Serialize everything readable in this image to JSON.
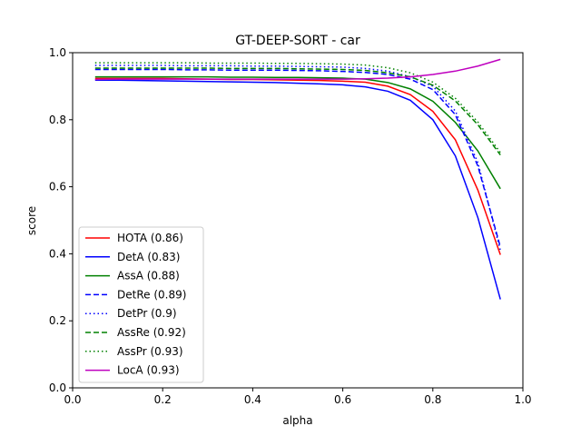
{
  "chart_data": {
    "type": "line",
    "title": "GT-DEEP-SORT - car",
    "xlabel": "alpha",
    "ylabel": "score",
    "xlim": [
      0.0,
      1.0
    ],
    "ylim": [
      0.0,
      1.0
    ],
    "xticks": [
      "0.0",
      "0.2",
      "0.4",
      "0.6",
      "0.8",
      "1.0"
    ],
    "yticks": [
      "0.0",
      "0.2",
      "0.4",
      "0.6",
      "0.8",
      "1.0"
    ],
    "grid": false,
    "legend_position": "lower-left",
    "x": [
      0.05,
      0.1,
      0.15,
      0.2,
      0.25,
      0.3,
      0.35,
      0.4,
      0.45,
      0.5,
      0.55,
      0.6,
      0.65,
      0.7,
      0.75,
      0.8,
      0.85,
      0.9,
      0.95
    ],
    "series": [
      {
        "name": "HOTA (0.86)",
        "color": "#ff0000",
        "dash": "solid",
        "values": [
          0.923,
          0.923,
          0.923,
          0.923,
          0.922,
          0.921,
          0.92,
          0.92,
          0.919,
          0.918,
          0.917,
          0.915,
          0.912,
          0.9,
          0.875,
          0.825,
          0.74,
          0.59,
          0.397
        ]
      },
      {
        "name": "DetA (0.83)",
        "color": "#0000ff",
        "dash": "solid",
        "values": [
          0.918,
          0.918,
          0.917,
          0.916,
          0.915,
          0.914,
          0.913,
          0.912,
          0.911,
          0.909,
          0.907,
          0.904,
          0.898,
          0.885,
          0.858,
          0.8,
          0.692,
          0.508,
          0.264
        ]
      },
      {
        "name": "AssA (0.88)",
        "color": "#008000",
        "dash": "solid",
        "values": [
          0.928,
          0.928,
          0.928,
          0.928,
          0.928,
          0.928,
          0.927,
          0.927,
          0.926,
          0.926,
          0.925,
          0.924,
          0.921,
          0.911,
          0.892,
          0.855,
          0.792,
          0.707,
          0.594
        ]
      },
      {
        "name": "DetRe (0.89)",
        "color": "#0000ff",
        "dash": "dashed",
        "values": [
          0.95,
          0.95,
          0.95,
          0.95,
          0.949,
          0.949,
          0.948,
          0.948,
          0.948,
          0.947,
          0.946,
          0.944,
          0.941,
          0.935,
          0.921,
          0.89,
          0.815,
          0.662,
          0.42
        ]
      },
      {
        "name": "DetPr (0.9)",
        "color": "#0000ff",
        "dash": "dotted",
        "values": [
          0.962,
          0.962,
          0.962,
          0.962,
          0.961,
          0.961,
          0.961,
          0.96,
          0.96,
          0.959,
          0.958,
          0.957,
          0.953,
          0.945,
          0.928,
          0.9,
          0.826,
          0.672,
          0.41
        ]
      },
      {
        "name": "AssRe (0.92)",
        "color": "#008000",
        "dash": "dashed",
        "values": [
          0.954,
          0.954,
          0.954,
          0.954,
          0.954,
          0.954,
          0.953,
          0.953,
          0.953,
          0.952,
          0.951,
          0.95,
          0.947,
          0.94,
          0.928,
          0.903,
          0.856,
          0.785,
          0.695
        ]
      },
      {
        "name": "AssPr (0.93)",
        "color": "#008000",
        "dash": "dotted",
        "values": [
          0.97,
          0.97,
          0.97,
          0.97,
          0.97,
          0.969,
          0.969,
          0.969,
          0.968,
          0.968,
          0.967,
          0.966,
          0.963,
          0.955,
          0.94,
          0.912,
          0.864,
          0.793,
          0.702
        ]
      },
      {
        "name": "LocA (0.93)",
        "color": "#bf00bf",
        "dash": "solid",
        "values": [
          0.92,
          0.921,
          0.921,
          0.921,
          0.921,
          0.921,
          0.921,
          0.921,
          0.921,
          0.921,
          0.921,
          0.921,
          0.922,
          0.924,
          0.928,
          0.935,
          0.945,
          0.96,
          0.98
        ]
      }
    ]
  }
}
